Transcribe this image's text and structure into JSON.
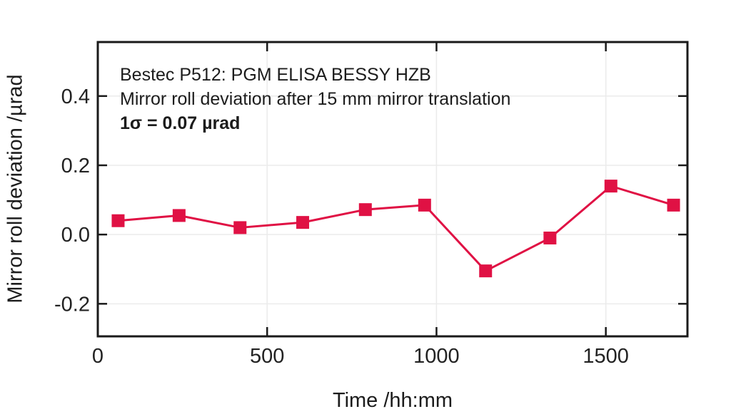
{
  "chart_data": {
    "type": "line",
    "title": "Bestec P512: PGM ELISA BESSY HZB",
    "subtitle": "Mirror roll deviation after 15 mm mirror translation",
    "sigma_note": "1σ = 0.07 µrad",
    "xlabel": "Time /hh:mm",
    "ylabel": "Mirror roll deviation /µrad",
    "xlim": [
      0,
      1741
    ],
    "ylim": [
      -0.294,
      0.556
    ],
    "xticks": [
      0,
      500,
      1000,
      1500
    ],
    "xtick_labels": [
      "0",
      "500",
      "1000",
      "1500"
    ],
    "yticks": [
      0.4,
      0.2,
      0.0,
      -0.2
    ],
    "ytick_labels": [
      "0.4",
      "0.2",
      "0.0",
      "-0.2"
    ],
    "grid": true,
    "legend_position": "none",
    "series": [
      {
        "name": "mirror roll deviation",
        "marker": "square",
        "color": "#e01144",
        "x": [
          60,
          240,
          420,
          605,
          790,
          965,
          1145,
          1335,
          1515,
          1700
        ],
        "y": [
          0.04,
          0.055,
          0.02,
          0.035,
          0.072,
          0.085,
          -0.105,
          -0.01,
          0.14,
          0.085
        ]
      }
    ]
  },
  "colors": {
    "accent_red": "#e01144",
    "frame": "#1a1a1a",
    "grid": "#ebebeb",
    "tick_text": "#222222"
  }
}
